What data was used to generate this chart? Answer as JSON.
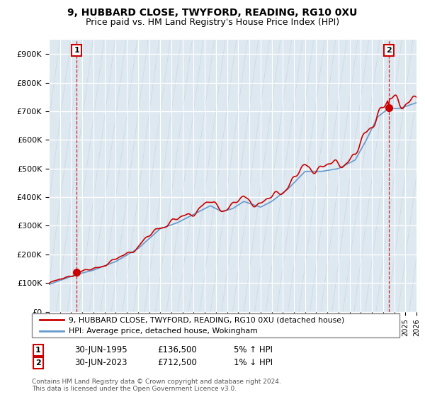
{
  "title_line1": "9, HUBBARD CLOSE, TWYFORD, READING, RG10 0XU",
  "title_line2": "Price paid vs. HM Land Registry's House Price Index (HPI)",
  "ytick_labels": [
    "£0",
    "£100K",
    "£200K",
    "£300K",
    "£400K",
    "£500K",
    "£600K",
    "£700K",
    "£800K",
    "£900K"
  ],
  "yticks": [
    0,
    100000,
    200000,
    300000,
    400000,
    500000,
    600000,
    700000,
    800000,
    900000
  ],
  "legend_line1": "9, HUBBARD CLOSE, TWYFORD, READING, RG10 0XU (detached house)",
  "legend_line2": "HPI: Average price, detached house, Wokingham",
  "color_price": "#cc0000",
  "color_hpi": "#6699cc",
  "annotation1_date": "30-JUN-1995",
  "annotation1_price": "£136,500",
  "annotation1_pct": "5% ↑ HPI",
  "annotation2_date": "30-JUN-2023",
  "annotation2_price": "£712,500",
  "annotation2_pct": "1% ↓ HPI",
  "footer": "Contains HM Land Registry data © Crown copyright and database right 2024.\nThis data is licensed under the Open Government Licence v3.0.",
  "point1_x": 1995.5,
  "point1_y": 136500,
  "point2_x": 2023.5,
  "point2_y": 712500,
  "xlim_min": 1993.0,
  "xlim_max": 2026.0,
  "ylim_min": 0,
  "ylim_max": 950000,
  "bg_color": "#dde8f0",
  "hatch_color": "#c0ccd8",
  "grid_color": "#ffffff"
}
